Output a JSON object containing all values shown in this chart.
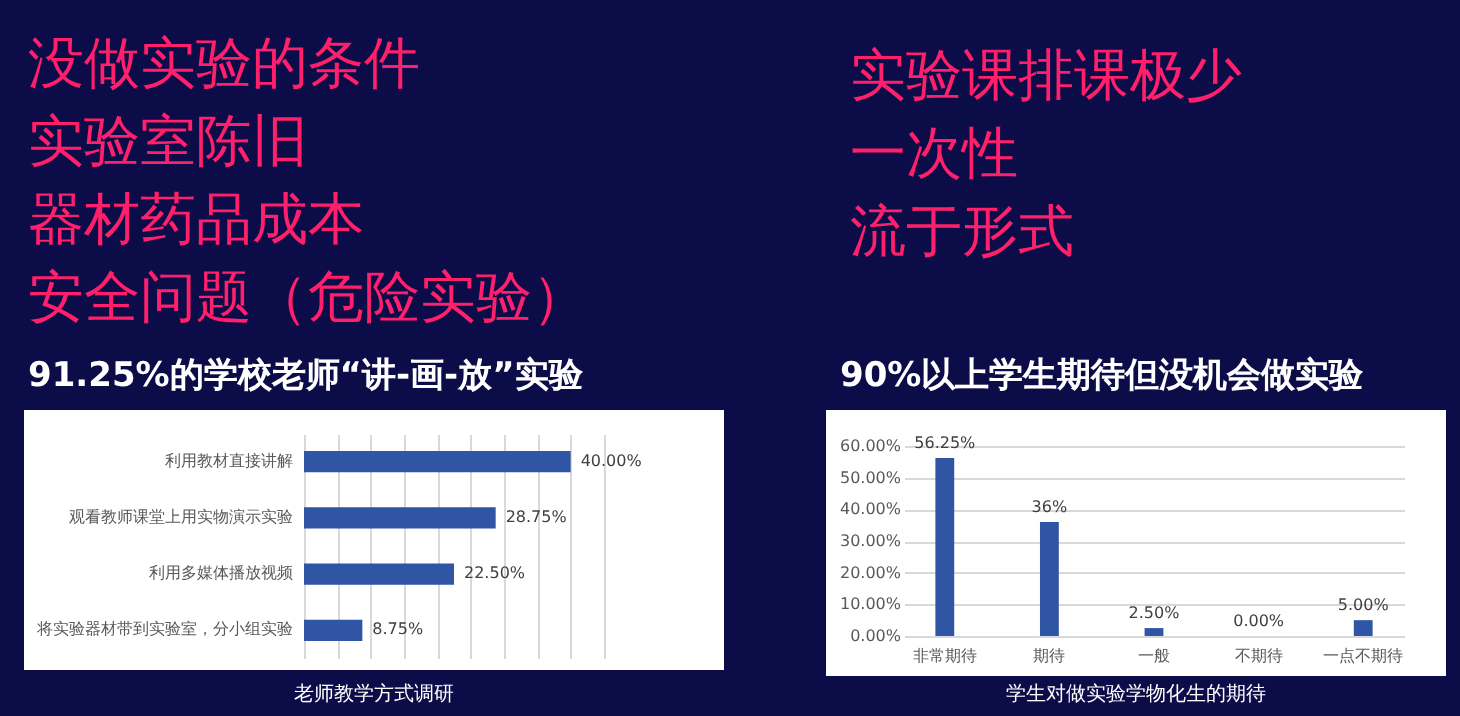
{
  "chart_data": [
    {
      "type": "other",
      "annotations": [
        "没做实验的条件",
        "实验室陈旧",
        "器材药品成本",
        "安全问题（危险实验）"
      ]
    },
    {
      "type": "other",
      "annotations": [
        "实验课排课极少",
        "一次性",
        "流于形式"
      ]
    },
    {
      "type": "bar",
      "title": "91.25%的学校老师“讲-画-放”实验",
      "orientation": "horizontal",
      "categories": [
        "利用教材直接讲解",
        "观看教师课堂上用实物演示实验",
        "利用多媒体播放视频",
        "将实验器材带到实验室，分小组实验"
      ],
      "values": [
        40,
        28.75,
        22.5,
        8.75
      ],
      "value_labels": [
        "40.00%",
        "28.75%",
        "22.50%",
        "8.75%"
      ],
      "color": "#2f55a4",
      "xlim": [
        0,
        45
      ],
      "xticks": [
        0,
        5,
        10,
        15,
        20,
        25,
        30,
        35,
        40,
        45
      ],
      "grid": "x",
      "tick_labels": "y",
      "annotations": [
        "老师教学方式调研"
      ]
    },
    {
      "type": "bar",
      "title": "90%以上学生期待但没机会做实验",
      "categories": [
        "非常期待",
        "期待",
        "一般",
        "不期待",
        "一点不期待"
      ],
      "values": [
        56.25,
        36,
        2.5,
        0,
        5
      ],
      "value_labels": [
        "56.25%",
        "36%",
        "2.50%",
        "0.00%",
        "5.00%"
      ],
      "color": "#2f55a4",
      "ylim": [
        0,
        60
      ],
      "yticks": [
        {
          "value": 0,
          "label": "0.00%"
        },
        {
          "value": 10,
          "label": "10.00%"
        },
        {
          "value": 20,
          "label": "20.00%"
        },
        {
          "value": 30,
          "label": "30.00%"
        },
        {
          "value": 40,
          "label": "40.00%"
        },
        {
          "value": 50,
          "label": "50.00%"
        },
        {
          "value": 60,
          "label": "60.00%"
        }
      ],
      "grid": "y",
      "annotations": [
        "学生对做实验学物化生的期待"
      ]
    }
  ]
}
